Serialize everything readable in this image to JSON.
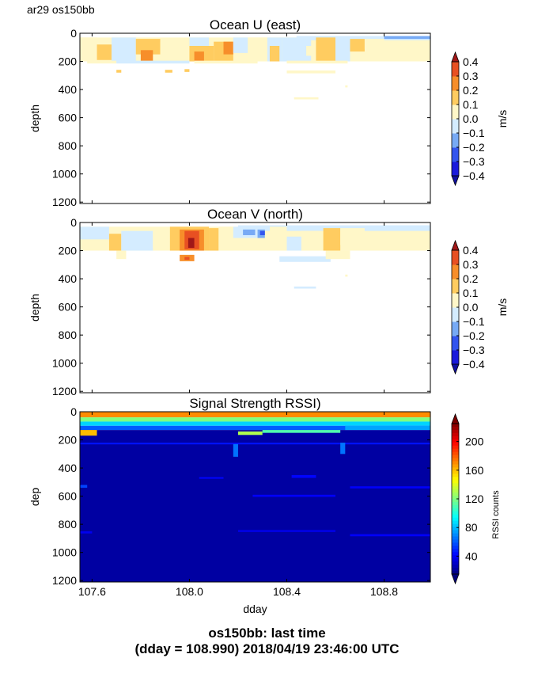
{
  "header": {
    "label": "ar29 os150bb"
  },
  "footer": {
    "line1": "os150bb: last time",
    "line2": "(dday = 108.990) 2018/04/19 23:46:00 UTC"
  },
  "chart_data": [
    {
      "type": "heatmap",
      "title": "Ocean U (east)",
      "xlabel": "",
      "ylabel": "depth",
      "xlim": [
        107.55,
        108.99
      ],
      "ylim": [
        1210,
        0
      ],
      "xticks": [
        107.6,
        108.0,
        108.4,
        108.8
      ],
      "xticklabels_shown": false,
      "yticks": [
        0,
        200,
        400,
        600,
        800,
        1000,
        1200
      ],
      "colorbar": {
        "label": "m/s",
        "ticks": [
          "0.4",
          "0.3",
          "0.2",
          "0.1",
          "0.0",
          "−0.1",
          "−0.2",
          "−0.3",
          "−0.4"
        ],
        "levels": [
          -0.4,
          -0.3,
          -0.2,
          -0.1,
          0.0,
          0.1,
          0.2,
          0.3,
          0.4
        ],
        "colors": [
          "#1a1adc",
          "#3355ee",
          "#77aaf5",
          "#d4ecff",
          "#fff7c8",
          "#ffcc60",
          "#f78e2a",
          "#e85022"
        ],
        "extend_over": "#a01818",
        "extend_under": "#1010a0"
      },
      "patches": [
        {
          "x0": 107.55,
          "x1": 108.99,
          "y0": 30,
          "y1": 200,
          "v": 0.05
        },
        {
          "x0": 108.44,
          "x1": 108.99,
          "y0": 20,
          "y1": 50,
          "v": -0.05
        },
        {
          "x0": 108.8,
          "x1": 108.99,
          "y0": 20,
          "y1": 40,
          "v": -0.15
        },
        {
          "x0": 107.55,
          "x1": 107.62,
          "y0": 30,
          "y1": 170,
          "v": 0.05
        },
        {
          "x0": 107.62,
          "x1": 107.68,
          "y0": 80,
          "y1": 190,
          "v": 0.15
        },
        {
          "x0": 107.68,
          "x1": 107.78,
          "y0": 30,
          "y1": 200,
          "v": -0.05
        },
        {
          "x0": 107.78,
          "x1": 107.88,
          "y0": 40,
          "y1": 150,
          "v": 0.15
        },
        {
          "x0": 107.8,
          "x1": 107.85,
          "y0": 120,
          "y1": 200,
          "v": 0.25
        },
        {
          "x0": 107.88,
          "x1": 108.0,
          "y0": 60,
          "y1": 200,
          "v": 0.05
        },
        {
          "x0": 108.0,
          "x1": 108.08,
          "y0": 30,
          "y1": 90,
          "v": -0.05
        },
        {
          "x0": 108.0,
          "x1": 108.1,
          "y0": 90,
          "y1": 200,
          "v": 0.15
        },
        {
          "x0": 108.02,
          "x1": 108.06,
          "y0": 130,
          "y1": 200,
          "v": 0.25
        },
        {
          "x0": 108.1,
          "x1": 108.18,
          "y0": 60,
          "y1": 200,
          "v": 0.15
        },
        {
          "x0": 108.14,
          "x1": 108.18,
          "y0": 60,
          "y1": 150,
          "v": 0.25
        },
        {
          "x0": 108.18,
          "x1": 108.24,
          "y0": 30,
          "y1": 140,
          "v": -0.05
        },
        {
          "x0": 108.24,
          "x1": 108.32,
          "y0": 30,
          "y1": 200,
          "v": 0.05
        },
        {
          "x0": 108.32,
          "x1": 108.38,
          "y0": 30,
          "y1": 200,
          "v": -0.05
        },
        {
          "x0": 108.33,
          "x1": 108.37,
          "y0": 90,
          "y1": 200,
          "v": 0.15
        },
        {
          "x0": 108.38,
          "x1": 108.5,
          "y0": 30,
          "y1": 200,
          "v": -0.05
        },
        {
          "x0": 108.48,
          "x1": 108.52,
          "y0": 90,
          "y1": 160,
          "v": 0.05
        },
        {
          "x0": 108.52,
          "x1": 108.6,
          "y0": 30,
          "y1": 200,
          "v": 0.15
        },
        {
          "x0": 108.6,
          "x1": 108.66,
          "y0": 40,
          "y1": 200,
          "v": -0.05
        },
        {
          "x0": 108.66,
          "x1": 108.72,
          "y0": 40,
          "y1": 130,
          "v": 0.15
        },
        {
          "x0": 108.72,
          "x1": 108.8,
          "y0": 40,
          "y1": 110,
          "v": 0.05
        },
        {
          "x0": 107.58,
          "x1": 107.7,
          "y0": 195,
          "y1": 215,
          "v": 0.05
        },
        {
          "x0": 107.7,
          "x1": 108.0,
          "y0": 195,
          "y1": 215,
          "v": -0.05
        },
        {
          "x0": 108.02,
          "x1": 108.28,
          "y0": 195,
          "y1": 215,
          "v": 0.05
        },
        {
          "x0": 108.4,
          "x1": 108.65,
          "y0": 195,
          "y1": 215,
          "v": 0.05
        },
        {
          "x0": 107.7,
          "x1": 107.72,
          "y0": 260,
          "y1": 280,
          "v": 0.15
        },
        {
          "x0": 107.9,
          "x1": 107.93,
          "y0": 260,
          "y1": 280,
          "v": 0.15
        },
        {
          "x0": 107.98,
          "x1": 108.0,
          "y0": 255,
          "y1": 275,
          "v": 0.15
        },
        {
          "x0": 108.4,
          "x1": 108.6,
          "y0": 265,
          "y1": 285,
          "v": 0.05
        },
        {
          "x0": 108.43,
          "x1": 108.53,
          "y0": 455,
          "y1": 470,
          "v": 0.05
        },
        {
          "x0": 108.64,
          "x1": 108.65,
          "y0": 370,
          "y1": 385,
          "v": 0.05
        }
      ]
    },
    {
      "type": "heatmap",
      "title": "Ocean V (north)",
      "xlabel": "",
      "ylabel": "depth",
      "xlim": [
        107.55,
        108.99
      ],
      "ylim": [
        1210,
        0
      ],
      "xticks": [
        107.6,
        108.0,
        108.4,
        108.8
      ],
      "xticklabels_shown": false,
      "yticks": [
        0,
        200,
        400,
        600,
        800,
        1000,
        1200
      ],
      "colorbar": {
        "label": "m/s",
        "ticks": [
          "0.4",
          "0.3",
          "0.2",
          "0.1",
          "0.0",
          "−0.1",
          "−0.2",
          "−0.3",
          "−0.4"
        ],
        "levels": [
          -0.4,
          -0.3,
          -0.2,
          -0.1,
          0.0,
          0.1,
          0.2,
          0.3,
          0.4
        ],
        "colors": [
          "#1a1adc",
          "#3355ee",
          "#77aaf5",
          "#d4ecff",
          "#fff7c8",
          "#ffcc60",
          "#f78e2a",
          "#e85022"
        ],
        "extend_over": "#a01818",
        "extend_under": "#1010a0"
      },
      "patches": [
        {
          "x0": 107.55,
          "x1": 108.99,
          "y0": 30,
          "y1": 200,
          "v": 0.05
        },
        {
          "x0": 108.2,
          "x1": 108.99,
          "y0": 20,
          "y1": 60,
          "v": -0.05
        },
        {
          "x0": 108.8,
          "x1": 108.99,
          "y0": 20,
          "y1": 40,
          "v": -0.05
        },
        {
          "x0": 107.55,
          "x1": 107.67,
          "y0": 30,
          "y1": 120,
          "v": -0.05
        },
        {
          "x0": 107.67,
          "x1": 107.72,
          "y0": 80,
          "y1": 200,
          "v": 0.15
        },
        {
          "x0": 107.72,
          "x1": 107.85,
          "y0": 60,
          "y1": 200,
          "v": -0.05
        },
        {
          "x0": 107.85,
          "x1": 107.92,
          "y0": 60,
          "y1": 180,
          "v": 0.05
        },
        {
          "x0": 107.92,
          "x1": 108.08,
          "y0": 30,
          "y1": 200,
          "v": 0.15
        },
        {
          "x0": 107.96,
          "x1": 108.06,
          "y0": 50,
          "y1": 200,
          "v": 0.25
        },
        {
          "x0": 107.98,
          "x1": 108.04,
          "y0": 60,
          "y1": 190,
          "v": 0.35
        },
        {
          "x0": 107.995,
          "x1": 108.02,
          "y0": 110,
          "y1": 180,
          "v": 0.45
        },
        {
          "x0": 108.08,
          "x1": 108.12,
          "y0": 40,
          "y1": 200,
          "v": 0.15
        },
        {
          "x0": 108.12,
          "x1": 108.18,
          "y0": 30,
          "y1": 200,
          "v": 0.05
        },
        {
          "x0": 108.18,
          "x1": 108.3,
          "y0": 30,
          "y1": 110,
          "v": -0.05
        },
        {
          "x0": 108.22,
          "x1": 108.27,
          "y0": 50,
          "y1": 90,
          "v": -0.15
        },
        {
          "x0": 108.28,
          "x1": 108.31,
          "y0": 50,
          "y1": 110,
          "v": -0.15
        },
        {
          "x0": 108.29,
          "x1": 108.31,
          "y0": 60,
          "y1": 90,
          "v": -0.25
        },
        {
          "x0": 108.33,
          "x1": 108.4,
          "y0": 30,
          "y1": 200,
          "v": 0.05
        },
        {
          "x0": 108.4,
          "x1": 108.46,
          "y0": 100,
          "y1": 200,
          "v": -0.05
        },
        {
          "x0": 108.46,
          "x1": 108.55,
          "y0": 60,
          "y1": 200,
          "v": 0.05
        },
        {
          "x0": 108.55,
          "x1": 108.62,
          "y0": 40,
          "y1": 200,
          "v": 0.15
        },
        {
          "x0": 108.62,
          "x1": 108.72,
          "y0": 40,
          "y1": 160,
          "v": 0.05
        },
        {
          "x0": 107.7,
          "x1": 107.74,
          "y0": 200,
          "y1": 260,
          "v": 0.05
        },
        {
          "x0": 107.96,
          "x1": 108.02,
          "y0": 230,
          "y1": 275,
          "v": 0.25
        },
        {
          "x0": 107.98,
          "x1": 108.0,
          "y0": 245,
          "y1": 265,
          "v": 0.35
        },
        {
          "x0": 108.37,
          "x1": 108.58,
          "y0": 240,
          "y1": 280,
          "v": -0.05
        },
        {
          "x0": 108.56,
          "x1": 108.66,
          "y0": 200,
          "y1": 260,
          "v": 0.05
        },
        {
          "x0": 108.43,
          "x1": 108.52,
          "y0": 455,
          "y1": 470,
          "v": -0.05
        },
        {
          "x0": 108.64,
          "x1": 108.65,
          "y0": 370,
          "y1": 385,
          "v": 0.05
        }
      ]
    },
    {
      "type": "heatmap",
      "title": "Signal Strength RSSI)",
      "xlabel": "dday",
      "ylabel": "dep",
      "xlim": [
        107.55,
        108.99
      ],
      "ylim": [
        1210,
        0
      ],
      "xticks": [
        107.6,
        108.0,
        108.4,
        108.8
      ],
      "xticklabels": [
        "107.6",
        "108.0",
        "108.4",
        "108.8"
      ],
      "yticks": [
        0,
        200,
        400,
        600,
        800,
        1000,
        1200
      ],
      "colorbar": {
        "label": "RSSI counts",
        "range": [
          15,
          225
        ],
        "ticks": [
          "200",
          "160",
          "120",
          "80",
          "40"
        ],
        "tick_values": [
          200,
          160,
          120,
          80,
          40
        ],
        "extend_over": "#7a0000",
        "extend_under": "#00007a"
      },
      "bands": [
        {
          "y0": 0,
          "y1": 40,
          "v": 170
        },
        {
          "y0": 40,
          "y1": 70,
          "v": 120
        },
        {
          "y0": 70,
          "y1": 100,
          "v": 85
        },
        {
          "y0": 100,
          "y1": 130,
          "v": 60
        },
        {
          "y0": 130,
          "y1": 1210,
          "v": 22
        }
      ],
      "features": [
        {
          "x0": 107.55,
          "x1": 108.99,
          "y0": 220,
          "y1": 232,
          "v": 45
        },
        {
          "x0": 107.55,
          "x1": 107.62,
          "y0": 130,
          "y1": 170,
          "v": 160
        },
        {
          "x0": 108.18,
          "x1": 108.2,
          "y0": 230,
          "y1": 320,
          "v": 65
        },
        {
          "x0": 108.2,
          "x1": 108.3,
          "y0": 140,
          "y1": 165,
          "v": 130
        },
        {
          "x0": 108.3,
          "x1": 108.62,
          "y0": 130,
          "y1": 150,
          "v": 110
        },
        {
          "x0": 108.62,
          "x1": 108.64,
          "y0": 220,
          "y1": 300,
          "v": 65
        },
        {
          "x0": 108.64,
          "x1": 108.99,
          "y0": 100,
          "y1": 130,
          "v": 75
        },
        {
          "x0": 107.55,
          "x1": 107.58,
          "y0": 520,
          "y1": 540,
          "v": 55
        },
        {
          "x0": 108.04,
          "x1": 108.14,
          "y0": 465,
          "y1": 475,
          "v": 42
        },
        {
          "x0": 108.42,
          "x1": 108.52,
          "y0": 450,
          "y1": 470,
          "v": 42
        },
        {
          "x0": 108.26,
          "x1": 108.6,
          "y0": 590,
          "y1": 605,
          "v": 40
        },
        {
          "x0": 108.66,
          "x1": 108.99,
          "y0": 530,
          "y1": 545,
          "v": 40
        },
        {
          "x0": 108.66,
          "x1": 108.99,
          "y0": 870,
          "y1": 885,
          "v": 40
        },
        {
          "x0": 107.55,
          "x1": 107.6,
          "y0": 850,
          "y1": 865,
          "v": 38
        },
        {
          "x0": 108.2,
          "x1": 108.6,
          "y0": 840,
          "y1": 855,
          "v": 36
        }
      ]
    }
  ]
}
